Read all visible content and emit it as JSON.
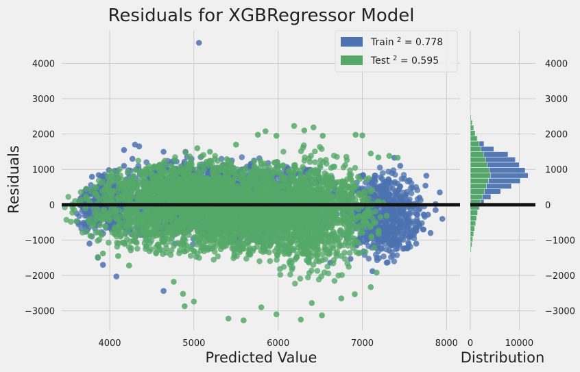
{
  "chart_data": {
    "type": "scatter",
    "title": "Residuals for XGBRegressor Model",
    "xlabel": "Predicted Value",
    "ylabel": "Residuals",
    "xlim": [
      3430,
      8160
    ],
    "ylim": [
      -3550,
      4920
    ],
    "xticks": [
      "4000",
      "5000",
      "6000",
      "7000",
      "8000"
    ],
    "yticks": [
      "−3000",
      "−2000",
      "−1000",
      "0",
      "1000",
      "2000",
      "3000",
      "4000"
    ],
    "grid": true,
    "legend_position": "top-right",
    "reference_line_y": 0,
    "series": [
      {
        "name": "Train R² = 0.778",
        "legend_base": "Train ",
        "legend_sup": "2",
        "legend_tail": " = 0.778",
        "color": "#4c72b0",
        "points": [
          [
            5060,
            4580
          ],
          [
            4300,
            1700
          ],
          [
            4350,
            1650
          ],
          [
            4170,
            1550
          ],
          [
            4640,
            1500
          ],
          [
            4900,
            1500
          ],
          [
            3990,
            980
          ],
          [
            3870,
            840
          ],
          [
            3790,
            790
          ],
          [
            3720,
            430
          ],
          [
            3700,
            280
          ],
          [
            3760,
            310
          ],
          [
            4170,
            1100
          ],
          [
            4270,
            1300
          ],
          [
            4600,
            1130
          ],
          [
            7380,
            1330
          ],
          [
            7450,
            1100
          ],
          [
            7560,
            690
          ],
          [
            7680,
            200
          ],
          [
            7750,
            540
          ],
          [
            7870,
            20
          ],
          [
            7950,
            -400
          ],
          [
            7810,
            -800
          ],
          [
            7640,
            -1100
          ],
          [
            7540,
            -1200
          ],
          [
            7300,
            -1630
          ],
          [
            7120,
            -1880
          ],
          [
            6860,
            -1530
          ],
          [
            6620,
            -1640
          ],
          [
            4640,
            -2440
          ],
          [
            3860,
            -1500
          ],
          [
            3760,
            -1100
          ],
          [
            3920,
            -1700
          ],
          [
            4080,
            -2030
          ],
          [
            3750,
            -520
          ],
          [
            3700,
            150
          ],
          [
            7780,
            -280
          ],
          [
            7870,
            -150
          ],
          [
            7760,
            820
          ],
          [
            7920,
            350
          ]
        ],
        "clusters": [
          {
            "cx": 5250,
            "cy": 120,
            "sx": 750,
            "sy": 580,
            "n": 1700,
            "clipR": 2.2
          },
          {
            "cx": 7250,
            "cy": -300,
            "sx": 230,
            "sy": 620,
            "n": 650,
            "clipR": 2.2
          },
          {
            "cx": 3950,
            "cy": -150,
            "sx": 170,
            "sy": 380,
            "n": 260,
            "clipR": 2.2
          }
        ],
        "hist": {
          "bin_start": -1500,
          "bin_width": 150,
          "counts": [
            30,
            60,
            110,
            180,
            280,
            420,
            620,
            900,
            1300,
            1900,
            2800,
            4200,
            6200,
            8400,
            10200,
            11800,
            11200,
            10000,
            9200,
            7700,
            4800,
            2800,
            1500,
            700,
            300,
            120,
            50
          ]
        }
      },
      {
        "name": "Test R² = 0.595",
        "legend_base": "Test ",
        "legend_sup": "2",
        "legend_tail": " = 0.595",
        "color": "#55a868",
        "points": [
          [
            6190,
            2230
          ],
          [
            6420,
            2190
          ],
          [
            6310,
            2100
          ],
          [
            5850,
            2080
          ],
          [
            5980,
            1950
          ],
          [
            6530,
            1950
          ],
          [
            6920,
            1980
          ],
          [
            7000,
            1960
          ],
          [
            5760,
            1980
          ],
          [
            5500,
            1700
          ],
          [
            5040,
            1600
          ],
          [
            5190,
            1500
          ],
          [
            4900,
            1480
          ],
          [
            7100,
            1450
          ],
          [
            7190,
            1340
          ],
          [
            7320,
            1380
          ],
          [
            7420,
            1330
          ],
          [
            5410,
            -3220
          ],
          [
            5590,
            -3270
          ],
          [
            6270,
            -3250
          ],
          [
            6520,
            -3130
          ],
          [
            5980,
            -3100
          ],
          [
            5800,
            -2900
          ],
          [
            5000,
            -2740
          ],
          [
            4890,
            -2870
          ],
          [
            4870,
            -2520
          ],
          [
            4760,
            -2180
          ],
          [
            6750,
            -2650
          ],
          [
            6910,
            -2530
          ],
          [
            7100,
            -2330
          ],
          [
            7170,
            -1920
          ],
          [
            3860,
            -1480
          ],
          [
            3920,
            -1380
          ],
          [
            3770,
            -880
          ],
          [
            3800,
            -600
          ],
          [
            6400,
            -2780
          ],
          [
            4100,
            -1450
          ],
          [
            4230,
            -1720
          ]
        ],
        "clusters": [
          {
            "cx": 5350,
            "cy": -150,
            "sx": 830,
            "sy": 620,
            "n": 2600,
            "clipR": 2.3
          },
          {
            "cx": 6350,
            "cy": -300,
            "sx": 380,
            "sy": 800,
            "n": 800,
            "clipR": 2.5
          },
          {
            "cx": 4900,
            "cy": 350,
            "sx": 500,
            "sy": 500,
            "n": 500,
            "clipR": 2.2
          }
        ],
        "hist": {
          "bin_start": -1500,
          "bin_width": 150,
          "counts": [
            100,
            200,
            350,
            500,
            700,
            900,
            1100,
            1300,
            1500,
            1800,
            2100,
            2500,
            2900,
            3300,
            3700,
            4100,
            3900,
            3500,
            3100,
            2700,
            2200,
            1800,
            1400,
            1000,
            700,
            400,
            200
          ]
        }
      }
    ],
    "dist": {
      "xlabel": "Distribution",
      "xticks": [
        "0",
        "10000"
      ],
      "xlim": [
        0,
        13300
      ]
    }
  }
}
